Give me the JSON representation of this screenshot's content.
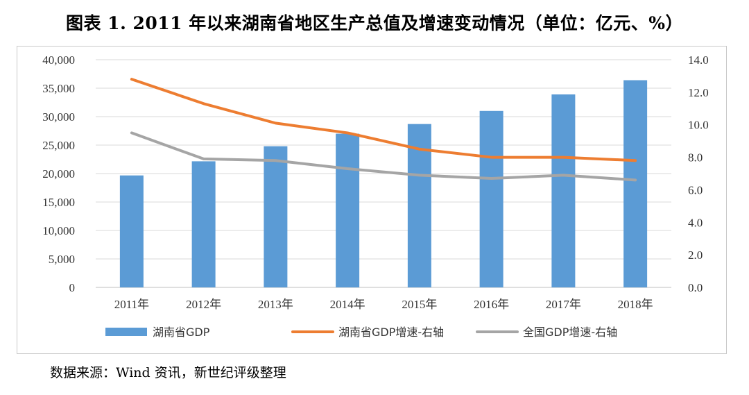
{
  "title": "图表 1.   2011 年以来湖南省地区生产总值及增速变动情况（单位：亿元、%）",
  "source": "数据来源：Wind 资讯，新世纪评级整理",
  "colors": {
    "bar": "#5b9bd5",
    "line_hunan": "#ed7d31",
    "line_national": "#a5a5a5",
    "grid": "#d9d9d9"
  },
  "chart_data": {
    "type": "bar",
    "categories": [
      "2011年",
      "2012年",
      "2013年",
      "2014年",
      "2015年",
      "2016年",
      "2017年",
      "2018年"
    ],
    "series": [
      {
        "name": "湖南省GDP",
        "kind": "bar",
        "axis": "left",
        "values": [
          19670,
          22150,
          24800,
          27000,
          28700,
          31000,
          33900,
          36400
        ]
      },
      {
        "name": "湖南省GDP增速-右轴",
        "kind": "line",
        "axis": "right",
        "values": [
          12.8,
          11.3,
          10.1,
          9.5,
          8.5,
          8.0,
          8.0,
          7.8
        ]
      },
      {
        "name": "全国GDP增速-右轴",
        "kind": "line",
        "axis": "right",
        "values": [
          9.5,
          7.9,
          7.8,
          7.3,
          6.9,
          6.7,
          6.9,
          6.6
        ]
      }
    ],
    "left_axis": {
      "min": 0,
      "max": 40000,
      "step": 5000,
      "tick_labels": [
        "0",
        "5,000",
        "10,000",
        "15,000",
        "20,000",
        "25,000",
        "30,000",
        "35,000",
        "40,000"
      ]
    },
    "right_axis": {
      "min": 0,
      "max": 14,
      "step": 2,
      "tick_labels": [
        "0.0",
        "2.0",
        "4.0",
        "6.0",
        "8.0",
        "10.0",
        "12.0",
        "14.0"
      ]
    },
    "grid": true,
    "legend_position": "bottom"
  }
}
